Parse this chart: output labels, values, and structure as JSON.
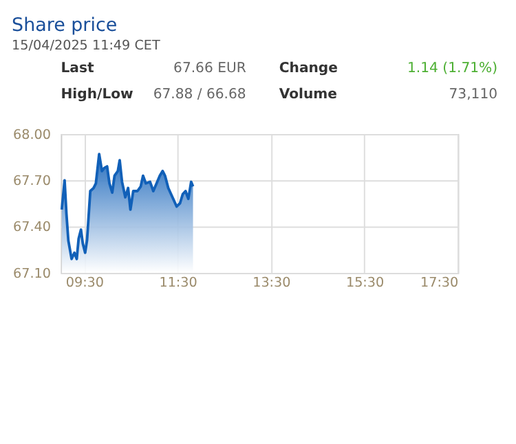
{
  "chart_data": {
    "type": "area",
    "title": "Share price",
    "subtitle": "15/04/2025 11:49 CET",
    "annotations": [
      "Last",
      "67.66 EUR",
      "Change",
      "1.14 (1.71%)",
      "High/Low",
      "67.88 / 66.68",
      "Volume",
      "73,110"
    ],
    "x": [
      9.02,
      9.08,
      9.12,
      9.16,
      9.23,
      9.29,
      9.34,
      9.38,
      9.43,
      9.47,
      9.52,
      9.56,
      9.63,
      9.7,
      9.75,
      9.82,
      9.88,
      9.93,
      9.99,
      10.04,
      10.1,
      10.15,
      10.22,
      10.26,
      10.31,
      10.38,
      10.44,
      10.49,
      10.55,
      10.64,
      10.71,
      10.76,
      10.82,
      10.91,
      10.98,
      11.05,
      11.12,
      11.18,
      11.23,
      11.3,
      11.39,
      11.48,
      11.55,
      11.61,
      11.67,
      11.73,
      11.79,
      11.83
    ],
    "series": [
      {
        "color": "#1160b8",
        "values": [
          67.51,
          67.7,
          67.48,
          67.31,
          67.19,
          67.23,
          67.19,
          67.32,
          67.38,
          67.29,
          67.23,
          67.31,
          67.63,
          67.65,
          67.68,
          67.87,
          67.76,
          67.78,
          67.79,
          67.68,
          67.62,
          67.73,
          67.76,
          67.83,
          67.69,
          67.59,
          67.65,
          67.51,
          67.63,
          67.63,
          67.66,
          67.73,
          67.68,
          67.69,
          67.63,
          67.68,
          67.73,
          67.76,
          67.73,
          67.65,
          67.59,
          67.53,
          67.55,
          67.61,
          67.63,
          67.58,
          67.69,
          67.66
        ]
      }
    ],
    "xlim": [
      9.0,
      17.5
    ],
    "xticks": [
      {
        "value": 9.5,
        "label": "09:30"
      },
      {
        "value": 11.5,
        "label": "11:30"
      },
      {
        "value": 13.5,
        "label": "13:30"
      },
      {
        "value": 15.5,
        "label": "15:30"
      },
      {
        "value": 17.5,
        "label": "17:30"
      }
    ],
    "ylim": [
      67.1,
      68.0
    ],
    "yticks": [
      {
        "value": 67.1,
        "label": "67.10"
      },
      {
        "value": 67.4,
        "label": "67.40"
      },
      {
        "value": 67.7,
        "label": "67.70"
      },
      {
        "value": 68.0,
        "label": "68.00"
      }
    ],
    "grid": true
  }
}
